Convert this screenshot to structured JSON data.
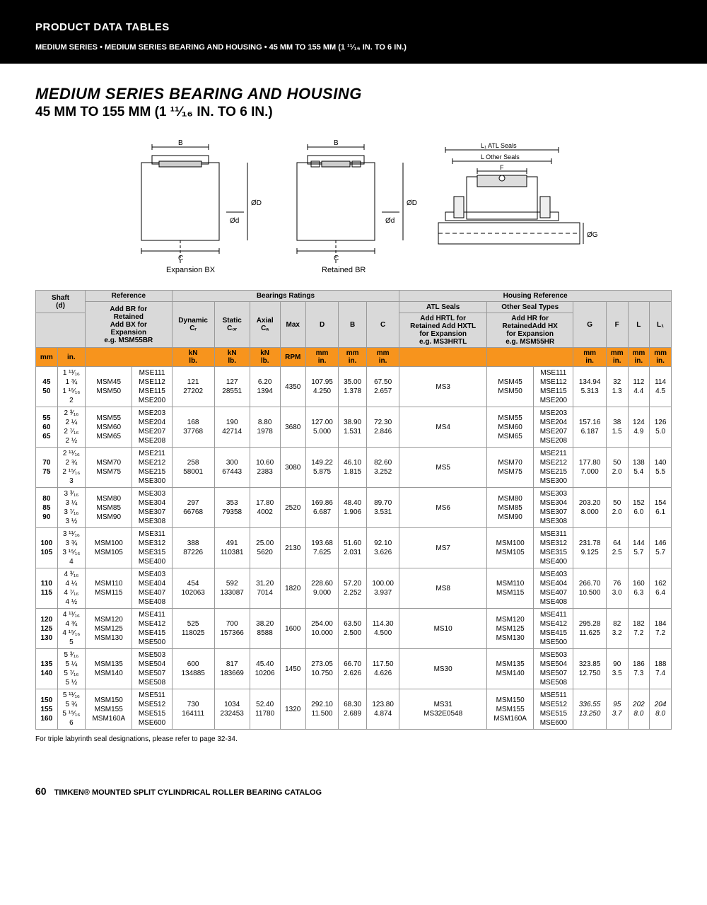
{
  "header": {
    "pdt": "PRODUCT DATA TABLES",
    "sub": "MEDIUM SERIES • MEDIUM SERIES BEARING AND HOUSING • 45 MM TO 155 MM (1 ¹¹⁄₁₆ IN. TO 6 IN.)"
  },
  "title": {
    "line1": "MEDIUM SERIES BEARING AND HOUSING",
    "line2": "45 MM TO 155 MM (1 ¹¹⁄₁₆ IN. TO 6 IN.)"
  },
  "diagrams": {
    "expansion_label": "Expansion BX",
    "retained_label": "Retained  BR",
    "B": "B",
    "C": "C",
    "od": "Ød",
    "OD": "ØD",
    "OG": "ØG",
    "L1": "L₁ ATL Seals",
    "L": "L Other Seals",
    "F": "F"
  },
  "tableHeaders": {
    "shaft": "Shaft\n(d)",
    "reference": "Reference",
    "ref_sub": "Add BR for\nRetained\nAdd BX for\nExpansion\ne.g. MSM55BR",
    "bearings": "Bearings Ratings",
    "dynamic": "Dynamic\nCᵣ",
    "static": "Static\nC₀ᵣ",
    "axial": "Axial\nCₐ",
    "max": "Max",
    "D": "D",
    "B": "B",
    "C": "C",
    "housing": "Housing Reference",
    "atl": "ATL Seals",
    "atl_sub": "Add HRTL for\nRetained Add HXTL\nfor Expansion\ne.g. MS3HRTL",
    "other": "Other Seal Types",
    "other_sub": "Add HR for\nRetainedAdd HX\nfor Expansion\ne.g. MSM55HR",
    "G": "G",
    "F": "F",
    "L": "L",
    "L1": "L₁"
  },
  "unitsRow": {
    "mm": "mm",
    "in": "in.",
    "kn_lb": "kN\nlb.",
    "rpm": "RPM",
    "mm_in": "mm\nin."
  },
  "footnote": "For triple labyrinth seal designations, please refer to page 32-34.",
  "footer": {
    "pageNum": "60",
    "catalog": "TIMKEN® MOUNTED SPLIT CYLINDRICAL ROLLER BEARING CATALOG"
  },
  "rows": [
    {
      "mm": "45\n50",
      "in": "1 ¹¹⁄₁₆\n1 ¾\n1 ¹⁵⁄₁₆\n2",
      "ref1": "MSM45\nMSM50",
      "ref2": "MSE111\nMSE112\nMSE115\nMSE200",
      "dyn": "121\n27202",
      "stat": "127\n28551",
      "axial": "6.20\n1394",
      "rpm": "4350",
      "D": "107.95\n4.250",
      "B": "35.00\n1.378",
      "C": "67.50\n2.657",
      "atl": "MS3",
      "oth1": "MSM45\nMSM50",
      "oth2": "MSE111\nMSE112\nMSE115\nMSE200",
      "G": "134.94\n5.313",
      "F": "32\n1.3",
      "L": "112\n4.4",
      "L1": "114\n4.5"
    },
    {
      "mm": "55\n60\n65",
      "in": "2 ³⁄₁₆\n2 ¼\n2 ⁷⁄₁₆\n2 ½",
      "ref1": "MSM55\nMSM60\nMSM65",
      "ref2": "MSE203\nMSE204\nMSE207\nMSE208",
      "dyn": "168\n37768",
      "stat": "190\n42714",
      "axial": "8.80\n1978",
      "rpm": "3680",
      "D": "127.00\n5.000",
      "B": "38.90\n1.531",
      "C": "72.30\n2.846",
      "atl": "MS4",
      "oth1": "MSM55\nMSM60\nMSM65",
      "oth2": "MSE203\nMSE204\nMSE207\nMSE208",
      "G": "157.16\n6.187",
      "F": "38\n1.5",
      "L": "124\n4.9",
      "L1": "126\n5.0"
    },
    {
      "mm": "70\n75",
      "in": "2 ¹¹⁄₁₆\n2 ¾\n2 ¹⁵⁄₁₆\n3",
      "ref1": "MSM70\nMSM75",
      "ref2": "MSE211\nMSE212\nMSE215\nMSE300",
      "dyn": "258\n58001",
      "stat": "300\n67443",
      "axial": "10.60\n2383",
      "rpm": "3080",
      "D": "149.22\n5.875",
      "B": "46.10\n1.815",
      "C": "82.60\n3.252",
      "atl": "MS5",
      "oth1": "MSM70\nMSM75",
      "oth2": "MSE211\nMSE212\nMSE215\nMSE300",
      "G": "177.80\n7.000",
      "F": "50\n2.0",
      "L": "138\n5.4",
      "L1": "140\n5.5"
    },
    {
      "mm": "80\n85\n90",
      "in": "3 ³⁄₁₆\n3 ¼\n3 ⁷⁄₁₆\n3 ½",
      "ref1": "MSM80\nMSM85\nMSM90",
      "ref2": "MSE303\nMSE304\nMSE307\nMSE308",
      "dyn": "297\n66768",
      "stat": "353\n79358",
      "axial": "17.80\n4002",
      "rpm": "2520",
      "D": "169.86\n6.687",
      "B": "48.40\n1.906",
      "C": "89.70\n3.531",
      "atl": "MS6",
      "oth1": "MSM80\nMSM85\nMSM90",
      "oth2": "MSE303\nMSE304\nMSE307\nMSE308",
      "G": "203.20\n8.000",
      "F": "50\n2.0",
      "L": "152\n6.0",
      "L1": "154\n6.1"
    },
    {
      "mm": "100\n105",
      "in": "3 ¹¹⁄₁₆\n3 ¾\n3 ¹⁵⁄₁₆\n4",
      "ref1": "MSM100\nMSM105",
      "ref2": "MSE311\nMSE312\nMSE315\nMSE400",
      "dyn": "388\n87226",
      "stat": "491\n110381",
      "axial": "25.00\n5620",
      "rpm": "2130",
      "D": "193.68\n7.625",
      "B": "51.60\n2.031",
      "C": "92.10\n3.626",
      "atl": "MS7",
      "oth1": "MSM100\nMSM105",
      "oth2": "MSE311\nMSE312\nMSE315\nMSE400",
      "G": "231.78\n9.125",
      "F": "64\n2.5",
      "L": "144\n5.7",
      "L1": "146\n5.7"
    },
    {
      "mm": "110\n115",
      "in": "4 ³⁄₁₆\n4 ¼\n4 ⁷⁄₁₆\n4 ½",
      "ref1": "MSM110\nMSM115",
      "ref2": "MSE403\nMSE404\nMSE407\nMSE408",
      "dyn": "454\n102063",
      "stat": "592\n133087",
      "axial": "31.20\n7014",
      "rpm": "1820",
      "D": "228.60\n9.000",
      "B": "57.20\n2.252",
      "C": "100.00\n3.937",
      "atl": "MS8",
      "oth1": "MSM110\nMSM115",
      "oth2": "MSE403\nMSE404\nMSE407\nMSE408",
      "G": "266.70\n10.500",
      "F": "76\n3.0",
      "L": "160\n6.3",
      "L1": "162\n6.4"
    },
    {
      "mm": "120\n125\n130",
      "in": "4 ¹¹⁄₁₆\n4 ¾\n4 ¹⁵⁄₁₆\n5",
      "ref1": "MSM120\nMSM125\nMSM130",
      "ref2": "MSE411\nMSE412\nMSE415\nMSE500",
      "dyn": "525\n118025",
      "stat": "700\n157366",
      "axial": "38.20\n8588",
      "rpm": "1600",
      "D": "254.00\n10.000",
      "B": "63.50\n2.500",
      "C": "114.30\n4.500",
      "atl": "MS10",
      "oth1": "MSM120\nMSM125\nMSM130",
      "oth2": "MSE411\nMSE412\nMSE415\nMSE500",
      "G": "295.28\n11.625",
      "F": "82\n3.2",
      "L": "182\n7.2",
      "L1": "184\n7.2"
    },
    {
      "mm": "135\n140",
      "in": "5 ³⁄₁₆\n5 ¼\n5 ⁷⁄₁₆\n5 ½",
      "ref1": "MSM135\nMSM140",
      "ref2": "MSE503\nMSE504\nMSE507\nMSE508",
      "dyn": "600\n134885",
      "stat": "817\n183669",
      "axial": "45.40\n10206",
      "rpm": "1450",
      "D": "273.05\n10.750",
      "B": "66.70\n2.626",
      "C": "117.50\n4.626",
      "atl": "MS30",
      "oth1": "MSM135\nMSM140",
      "oth2": "MSE503\nMSE504\nMSE507\nMSE508",
      "G": "323.85\n12.750",
      "F": "90\n3.5",
      "L": "186\n7.3",
      "L1": "188\n7.4"
    },
    {
      "mm": "150\n155\n160",
      "in": "5 ¹¹⁄₁₆\n5 ¾\n5 ¹⁵⁄₁₆\n6",
      "ref1": "MSM150\nMSM155\nMSM160A",
      "ref2": "MSE511\nMSE512\nMSE515\nMSE600",
      "dyn": "730\n164111",
      "stat": "1034\n232453",
      "axial": "52.40\n11780",
      "rpm": "1320",
      "D": "292.10\n11.500",
      "B": "68.30\n2.689",
      "C": "123.80\n4.874",
      "atl": "MS31\nMS32E0548",
      "oth1": "MSM150\nMSM155\nMSM160A",
      "oth2": "MSE511\nMSE512\nMSE515\nMSE600",
      "G": "336.55\n13.250",
      "F": "95\n3.7",
      "L": "202\n8.0",
      "L1": "204\n8.0",
      "italic": true
    }
  ]
}
